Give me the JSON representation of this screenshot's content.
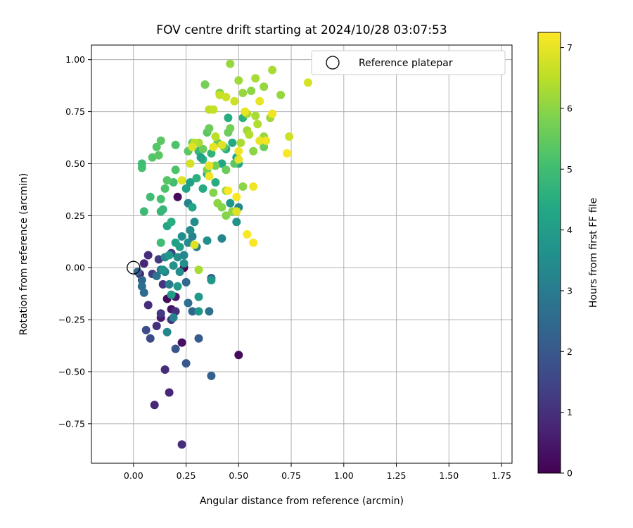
{
  "chart_data": {
    "type": "scatter",
    "title": "FOV centre drift starting at 2024/10/28 03:07:53",
    "xlabel": "Angular distance from reference (arcmin)",
    "ylabel": "Rotation from reference (arcmin)",
    "xlim": [
      -0.2,
      1.8
    ],
    "ylim": [
      -0.94,
      1.07
    ],
    "xticks": [
      0.0,
      0.25,
      0.5,
      0.75,
      1.0,
      1.25,
      1.5,
      1.75
    ],
    "xtick_labels": [
      "0.00",
      "0.25",
      "0.50",
      "0.75",
      "1.00",
      "1.25",
      "1.50",
      "1.75"
    ],
    "yticks": [
      -0.75,
      -0.5,
      -0.25,
      0.0,
      0.25,
      0.5,
      0.75,
      1.0
    ],
    "ytick_labels": [
      "−0.75",
      "−0.50",
      "−0.25",
      "0.00",
      "0.25",
      "0.50",
      "0.75",
      "1.00"
    ],
    "grid": true,
    "legend": {
      "position": "top-right",
      "entries": [
        "Reference platepar"
      ]
    },
    "reference_point": {
      "x": 0.0,
      "y": 0.0
    },
    "colorbar": {
      "label": "Hours from first FF file",
      "range": [
        0,
        7.25
      ],
      "ticks": [
        0,
        1,
        2,
        3,
        4,
        5,
        6,
        7
      ],
      "tick_labels": [
        "0",
        "1",
        "2",
        "3",
        "4",
        "5",
        "6",
        "7"
      ],
      "colormap": "viridis"
    },
    "points": [
      [
        0.24,
        0.0,
        0.1
      ],
      [
        0.21,
        0.34,
        0.2
      ],
      [
        0.5,
        -0.42,
        0.2
      ],
      [
        0.16,
        -0.15,
        0.2
      ],
      [
        0.23,
        -0.36,
        0.3
      ],
      [
        0.18,
        -0.2,
        0.4
      ],
      [
        0.13,
        -0.24,
        0.5
      ],
      [
        0.2,
        -0.14,
        0.5
      ],
      [
        0.03,
        -0.03,
        0.7
      ],
      [
        0.05,
        0.02,
        0.8
      ],
      [
        0.07,
        0.06,
        0.9
      ],
      [
        0.07,
        -0.18,
        0.9
      ],
      [
        0.1,
        -0.66,
        0.8
      ],
      [
        0.23,
        -0.85,
        0.9
      ],
      [
        0.17,
        -0.6,
        0.8
      ],
      [
        0.15,
        -0.49,
        0.9
      ],
      [
        0.11,
        -0.28,
        1.0
      ],
      [
        0.18,
        -0.25,
        1.1
      ],
      [
        0.2,
        -0.21,
        1.0
      ],
      [
        0.13,
        -0.22,
        1.2
      ],
      [
        0.09,
        -0.03,
        1.3
      ],
      [
        0.14,
        -0.08,
        1.1
      ],
      [
        0.18,
        0.07,
        1.3
      ],
      [
        0.12,
        0.04,
        1.2
      ],
      [
        0.08,
        -0.34,
        1.6
      ],
      [
        0.06,
        -0.3,
        1.7
      ],
      [
        0.2,
        -0.39,
        1.9
      ],
      [
        0.25,
        -0.46,
        2.0
      ],
      [
        0.37,
        -0.52,
        2.2
      ],
      [
        0.31,
        -0.34,
        2.1
      ],
      [
        0.28,
        -0.21,
        2.4
      ],
      [
        0.26,
        -0.17,
        2.6
      ],
      [
        0.36,
        -0.21,
        2.7
      ],
      [
        0.37,
        -0.05,
        2.2
      ],
      [
        0.25,
        -0.07,
        2.4
      ],
      [
        0.02,
        -0.02,
        2.3
      ],
      [
        0.04,
        -0.06,
        2.4
      ],
      [
        0.05,
        -0.12,
        2.5
      ],
      [
        0.04,
        -0.09,
        2.6
      ],
      [
        0.11,
        -0.04,
        2.8
      ],
      [
        0.13,
        -0.01,
        2.9
      ],
      [
        0.15,
        -0.02,
        3.1
      ],
      [
        0.17,
        -0.08,
        3.0
      ],
      [
        0.19,
        -0.24,
        3.2
      ],
      [
        0.16,
        -0.31,
        3.3
      ],
      [
        0.15,
        0.05,
        3.4
      ],
      [
        0.21,
        0.05,
        3.5
      ],
      [
        0.24,
        0.06,
        3.3
      ],
      [
        0.26,
        0.12,
        3.4
      ],
      [
        0.28,
        0.15,
        3.2
      ],
      [
        0.3,
        0.1,
        3.1
      ],
      [
        0.27,
        0.18,
        3.5
      ],
      [
        0.23,
        0.15,
        3.6
      ],
      [
        0.26,
        0.31,
        3.2
      ],
      [
        0.29,
        0.22,
        3.5
      ],
      [
        0.35,
        0.13,
        3.6
      ],
      [
        0.42,
        0.14,
        3.3
      ],
      [
        0.5,
        0.29,
        3.4
      ],
      [
        0.49,
        0.22,
        3.7
      ],
      [
        0.46,
        0.31,
        3.8
      ],
      [
        0.37,
        -0.06,
        3.8
      ],
      [
        0.31,
        -0.14,
        3.9
      ],
      [
        0.31,
        -0.21,
        3.8
      ],
      [
        0.21,
        -0.09,
        3.9
      ],
      [
        0.18,
        -0.13,
        4.0
      ],
      [
        0.22,
        0.1,
        4.0
      ],
      [
        0.2,
        0.12,
        4.1
      ],
      [
        0.16,
        0.2,
        4.3
      ],
      [
        0.18,
        0.22,
        4.5
      ],
      [
        0.25,
        0.38,
        4.2
      ],
      [
        0.33,
        0.38,
        4.4
      ],
      [
        0.39,
        0.41,
        4.5
      ],
      [
        0.28,
        0.29,
        4.3
      ],
      [
        0.27,
        0.41,
        4.1
      ],
      [
        0.3,
        0.43,
        4.6
      ],
      [
        0.35,
        0.45,
        4.4
      ],
      [
        0.42,
        0.5,
        4.3
      ],
      [
        0.44,
        0.57,
        4.5
      ],
      [
        0.47,
        0.6,
        4.4
      ],
      [
        0.49,
        0.53,
        4.4
      ],
      [
        0.5,
        0.5,
        4.3
      ],
      [
        0.33,
        0.52,
        4.6
      ],
      [
        0.31,
        0.56,
        4.8
      ],
      [
        0.32,
        0.53,
        4.2
      ],
      [
        0.37,
        0.55,
        4.7
      ],
      [
        0.45,
        0.72,
        4.5
      ],
      [
        0.52,
        0.72,
        4.6
      ],
      [
        0.14,
        0.28,
        4.8
      ],
      [
        0.13,
        0.27,
        4.8
      ],
      [
        0.05,
        0.27,
        4.9
      ],
      [
        0.08,
        0.34,
        5.0
      ],
      [
        0.13,
        0.33,
        5.1
      ],
      [
        0.15,
        0.38,
        5.2
      ],
      [
        0.19,
        0.41,
        5.0
      ],
      [
        0.16,
        0.42,
        5.3
      ],
      [
        0.2,
        0.47,
        5.2
      ],
      [
        0.04,
        0.48,
        5.1
      ],
      [
        0.04,
        0.5,
        5.0
      ],
      [
        0.09,
        0.53,
        5.3
      ],
      [
        0.12,
        0.54,
        5.4
      ],
      [
        0.11,
        0.58,
        5.3
      ],
      [
        0.13,
        0.61,
        5.4
      ],
      [
        0.2,
        0.59,
        5.2
      ],
      [
        0.26,
        0.56,
        5.4
      ],
      [
        0.28,
        0.6,
        5.5
      ],
      [
        0.33,
        0.57,
        5.6
      ],
      [
        0.35,
        0.65,
        5.4
      ],
      [
        0.36,
        0.67,
        5.6
      ],
      [
        0.4,
        0.6,
        5.6
      ],
      [
        0.43,
        0.58,
        5.5
      ],
      [
        0.45,
        0.65,
        5.6
      ],
      [
        0.46,
        0.67,
        5.7
      ],
      [
        0.48,
        0.5,
        5.4
      ],
      [
        0.44,
        0.47,
        5.6
      ],
      [
        0.39,
        0.49,
        5.7
      ],
      [
        0.35,
        0.47,
        5.8
      ],
      [
        0.38,
        0.36,
        5.9
      ],
      [
        0.4,
        0.31,
        6.0
      ],
      [
        0.42,
        0.29,
        5.9
      ],
      [
        0.44,
        0.25,
        5.9
      ],
      [
        0.47,
        0.27,
        6.0
      ],
      [
        0.49,
        0.27,
        6.1
      ],
      [
        0.52,
        0.39,
        6.0
      ],
      [
        0.44,
        0.37,
        6.1
      ],
      [
        0.34,
        0.88,
        5.7
      ],
      [
        0.41,
        0.84,
        5.8
      ],
      [
        0.46,
        0.98,
        6.1
      ],
      [
        0.5,
        0.9,
        6.2
      ],
      [
        0.52,
        0.84,
        6.1
      ],
      [
        0.56,
        0.85,
        6.0
      ],
      [
        0.58,
        0.91,
        6.3
      ],
      [
        0.62,
        0.87,
        6.1
      ],
      [
        0.66,
        0.95,
        6.3
      ],
      [
        0.7,
        0.83,
        6.1
      ],
      [
        0.62,
        0.58,
        5.6
      ],
      [
        0.57,
        0.56,
        6.0
      ],
      [
        0.62,
        0.63,
        6.1
      ],
      [
        0.65,
        0.72,
        6.2
      ],
      [
        0.58,
        0.73,
        6.3
      ],
      [
        0.59,
        0.69,
        6.4
      ],
      [
        0.54,
        0.74,
        6.3
      ],
      [
        0.54,
        0.66,
        6.2
      ],
      [
        0.51,
        0.6,
        6.3
      ],
      [
        0.55,
        0.64,
        6.4
      ],
      [
        0.39,
        0.63,
        6.5
      ],
      [
        0.36,
        0.76,
        6.5
      ],
      [
        0.38,
        0.76,
        6.6
      ],
      [
        0.41,
        0.83,
        6.6
      ],
      [
        0.44,
        0.82,
        6.7
      ],
      [
        0.48,
        0.8,
        6.7
      ],
      [
        0.31,
        0.6,
        6.3
      ],
      [
        0.29,
        0.6,
        6.5
      ],
      [
        0.27,
        0.5,
        6.8
      ],
      [
        0.28,
        0.58,
        6.9
      ],
      [
        0.42,
        0.59,
        6.9
      ],
      [
        0.38,
        0.58,
        7.0
      ],
      [
        0.36,
        0.49,
        7.0
      ],
      [
        0.36,
        0.44,
        7.1
      ],
      [
        0.23,
        0.42,
        6.9
      ],
      [
        0.29,
        0.11,
        6.9
      ],
      [
        0.5,
        0.56,
        7.1
      ],
      [
        0.5,
        0.52,
        7.0
      ],
      [
        0.53,
        0.75,
        7.0
      ],
      [
        0.6,
        0.8,
        7.0
      ],
      [
        0.6,
        0.61,
        7.0
      ],
      [
        0.63,
        0.61,
        7.1
      ],
      [
        0.66,
        0.74,
        7.1
      ],
      [
        0.74,
        0.63,
        6.7
      ],
      [
        0.73,
        0.55,
        7.2
      ],
      [
        0.83,
        0.89,
        6.8
      ],
      [
        0.57,
        0.39,
        7.1
      ],
      [
        0.49,
        0.34,
        7.2
      ],
      [
        0.45,
        0.37,
        7.2
      ],
      [
        0.54,
        0.16,
        7.2
      ],
      [
        0.57,
        0.12,
        7.2
      ],
      [
        0.49,
        0.27,
        6.9
      ],
      [
        0.31,
        -0.01,
        6.3
      ],
      [
        0.13,
        0.12,
        5.0
      ],
      [
        0.17,
        0.06,
        3.8
      ],
      [
        0.24,
        0.02,
        3.6
      ],
      [
        0.22,
        -0.02,
        3.5
      ],
      [
        0.19,
        0.01,
        3.7
      ],
      [
        0.14,
        -0.01,
        3.7
      ]
    ]
  }
}
